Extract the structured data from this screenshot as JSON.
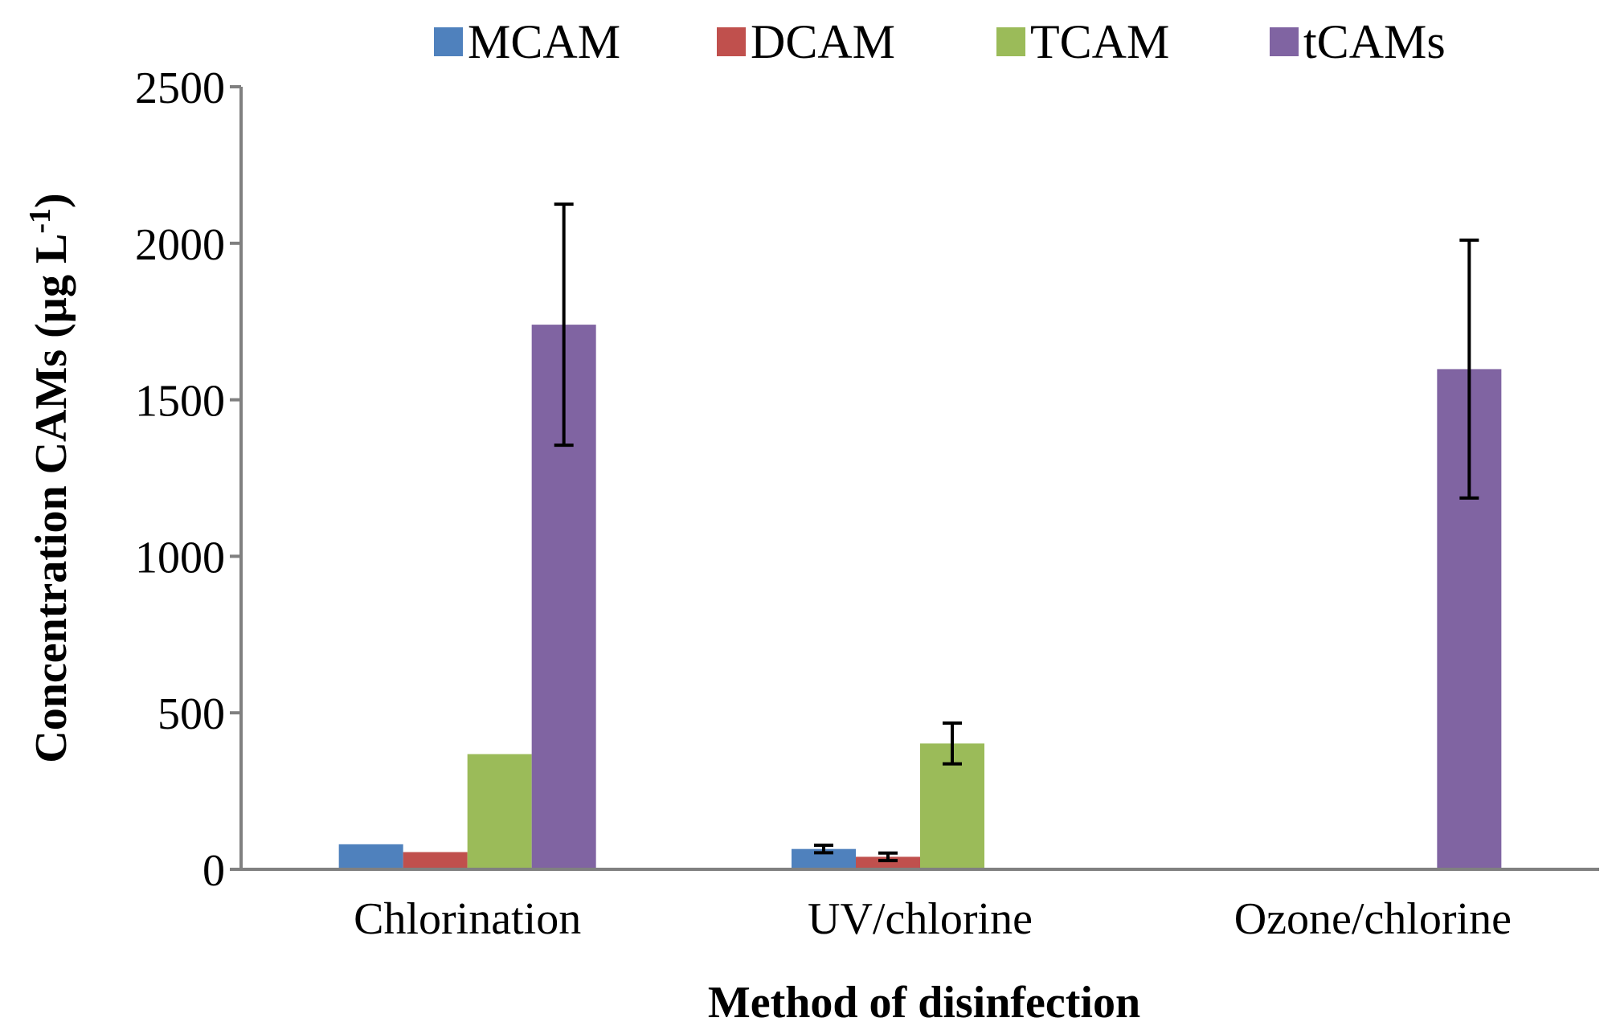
{
  "chart_data": {
    "type": "bar",
    "title": "",
    "xlabel": "Method of disinfection",
    "ylabel_main": "Concentration CAMs (µg L",
    "ylabel_sup": "-1",
    "ylabel_close": ")",
    "ylim": [
      0,
      2500
    ],
    "yticks": [
      0,
      500,
      1000,
      1500,
      2000,
      2500
    ],
    "grid": false,
    "legend_position": "top",
    "categories": [
      "Chlorination",
      "UV/chlorine",
      "Ozone/chlorine"
    ],
    "series": [
      {
        "name": "MCAM",
        "color": "#4f81bd",
        "values": [
          80,
          65,
          0
        ],
        "errors": [
          null,
          12,
          null
        ]
      },
      {
        "name": "DCAM",
        "color": "#c0504d",
        "values": [
          55,
          40,
          0
        ],
        "errors": [
          null,
          12,
          null
        ]
      },
      {
        "name": "TCAM",
        "color": "#9bbb59",
        "values": [
          368,
          402,
          0
        ],
        "errors": [
          null,
          65,
          null
        ]
      },
      {
        "name": "tCAMs",
        "color": "#8064a2",
        "values": [
          1740,
          0,
          1598
        ],
        "errors": [
          385,
          null,
          412
        ]
      }
    ]
  }
}
